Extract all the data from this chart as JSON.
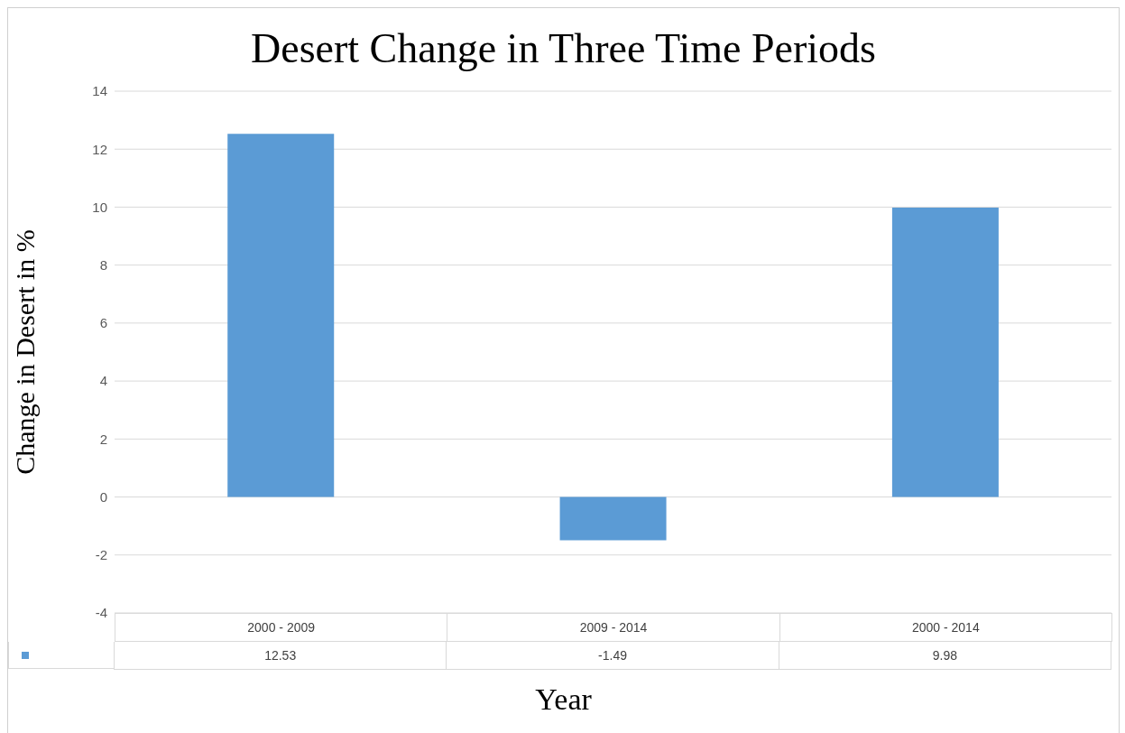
{
  "chart_data": {
    "type": "bar",
    "title": "Desert Change in Three Time Periods",
    "xlabel": "Year",
    "ylabel": "Change in Desert in %",
    "categories": [
      "2000 - 2009",
      "2009 - 2014",
      "2000 - 2014"
    ],
    "values": [
      12.53,
      -1.49,
      9.98
    ],
    "color": "#5b9bd5",
    "ylim": [
      -4,
      14
    ],
    "yticks": [
      -4,
      -2,
      0,
      2,
      4,
      6,
      8,
      10,
      12,
      14
    ],
    "grid": "y",
    "data_labels": true
  }
}
